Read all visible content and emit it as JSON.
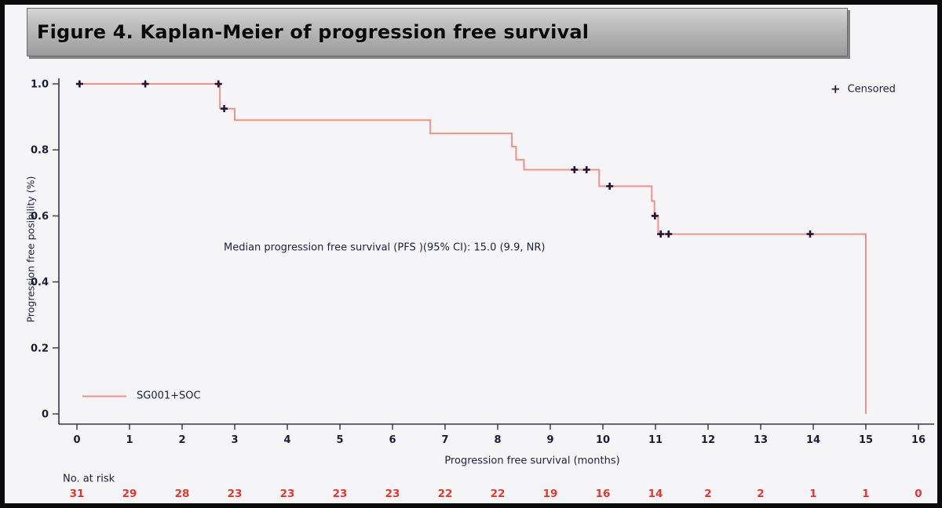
{
  "window": {
    "title": "Figure 4. Kaplan-Meier of progression free survival"
  },
  "chart_data": {
    "type": "line",
    "subtype": "kaplan-meier-step",
    "title": "Figure 4. Kaplan-Meier of progression free survival",
    "xlabel": "Progression free survival (months)",
    "ylabel": "Progression free posibility (%)",
    "xlim": [
      0,
      16
    ],
    "ylim": [
      0,
      1.0
    ],
    "x_ticks": [
      0,
      1,
      2,
      3,
      4,
      5,
      6,
      7,
      8,
      9,
      10,
      11,
      12,
      13,
      14,
      15,
      16
    ],
    "y_ticks": [
      1.0,
      0.8,
      0.6,
      0.4,
      0.2,
      0
    ],
    "y_tick_labels": [
      "1.0",
      "0.8",
      "0.6",
      "0.4",
      "0.2",
      "0"
    ],
    "grid": false,
    "series": [
      {
        "name": "SG001+SOC",
        "color": "#ee9186",
        "steps": [
          [
            0,
            1.0
          ],
          [
            2.72,
            1.0
          ],
          [
            2.72,
            0.925
          ],
          [
            3.0,
            0.925
          ],
          [
            3.0,
            0.89
          ],
          [
            6.72,
            0.89
          ],
          [
            6.72,
            0.85
          ],
          [
            8.27,
            0.85
          ],
          [
            8.27,
            0.81
          ],
          [
            8.35,
            0.81
          ],
          [
            8.35,
            0.77
          ],
          [
            8.5,
            0.77
          ],
          [
            8.5,
            0.74
          ],
          [
            9.93,
            0.74
          ],
          [
            9.93,
            0.69
          ],
          [
            10.93,
            0.69
          ],
          [
            10.93,
            0.645
          ],
          [
            10.98,
            0.645
          ],
          [
            10.98,
            0.6
          ],
          [
            11.05,
            0.6
          ],
          [
            11.05,
            0.545
          ],
          [
            15.0,
            0.545
          ],
          [
            15.0,
            0.0
          ]
        ],
        "censored": [
          [
            0.05,
            1.0
          ],
          [
            1.3,
            1.0
          ],
          [
            2.69,
            1.0
          ],
          [
            2.8,
            0.925
          ],
          [
            9.46,
            0.74
          ],
          [
            9.69,
            0.74
          ],
          [
            10.13,
            0.69
          ],
          [
            10.99,
            0.6
          ],
          [
            11.1,
            0.545
          ],
          [
            11.25,
            0.545
          ],
          [
            13.94,
            0.545
          ]
        ]
      }
    ],
    "annotation": "Median progression free survival (PFS )(95% CI): 15.0 (9.9, NR)",
    "legend": {
      "position": "top-right",
      "censored_marker": "+",
      "censored_label": "Censored"
    },
    "series_legend": {
      "position": "bottom-left-inside",
      "label": "SG001+SOC"
    },
    "risk_table": {
      "label": "No. at risk",
      "months": [
        0,
        1,
        2,
        3,
        4,
        5,
        6,
        7,
        8,
        9,
        10,
        11,
        12,
        13,
        14,
        15,
        16
      ],
      "values": [
        31,
        29,
        28,
        23,
        23,
        23,
        23,
        22,
        22,
        19,
        16,
        14,
        2,
        2,
        1,
        1,
        0
      ]
    }
  },
  "colors": {
    "curve": "#ee9186",
    "censor_mark": "#241332",
    "risk_numbers": "#e3382e",
    "axis": "#34344a",
    "text": "#1c1c34",
    "background": "#f5f5f8",
    "titlebar_text": "#0a0a0a"
  }
}
